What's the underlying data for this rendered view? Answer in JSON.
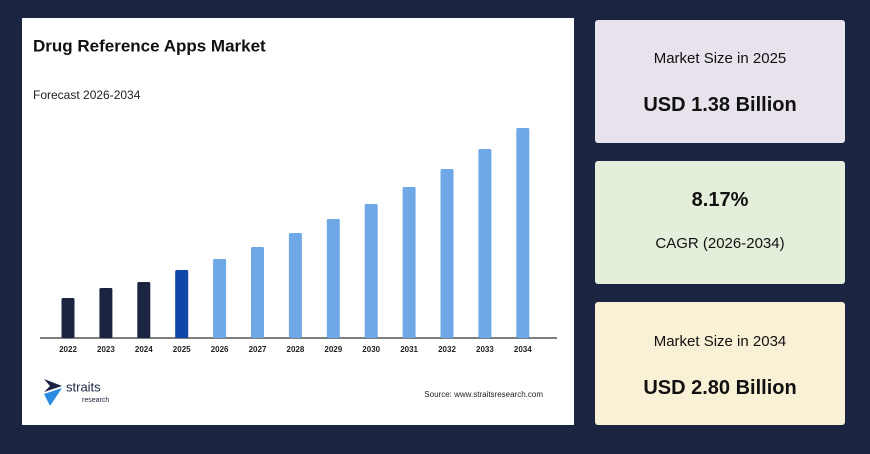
{
  "chart_data": {
    "type": "bar",
    "title": "Drug Reference Apps Market",
    "subtitle": "Forecast 2026-2034",
    "categories": [
      "2022",
      "2023",
      "2024",
      "2025",
      "2026",
      "2027",
      "2028",
      "2029",
      "2030",
      "2031",
      "2032",
      "2033",
      "2034"
    ],
    "values": [
      1.1,
      1.2,
      1.26,
      1.38,
      1.49,
      1.61,
      1.75,
      1.89,
      2.04,
      2.21,
      2.39,
      2.59,
      2.8
    ],
    "colors": [
      "#1b2541",
      "#1b2541",
      "#1b2541",
      "#0f47a8",
      "#6fa8e6",
      "#6fa8e6",
      "#6fa8e6",
      "#6fa8e6",
      "#6fa8e6",
      "#6fa8e6",
      "#6fa8e6",
      "#6fa8e6",
      "#6fa8e6"
    ],
    "ylim": [
      0.7,
      2.9
    ],
    "source": "Source: www.straitsresearch.com"
  },
  "logo": {
    "name": "straits",
    "tagline": "research"
  },
  "cards": [
    {
      "label": "Market Size in 2025",
      "value": "USD 1.38 Billion"
    },
    {
      "label": "CAGR (2026-2034)",
      "value": "8.17%"
    },
    {
      "label": "Market Size in 2034",
      "value": "USD 2.80 Billion"
    }
  ]
}
